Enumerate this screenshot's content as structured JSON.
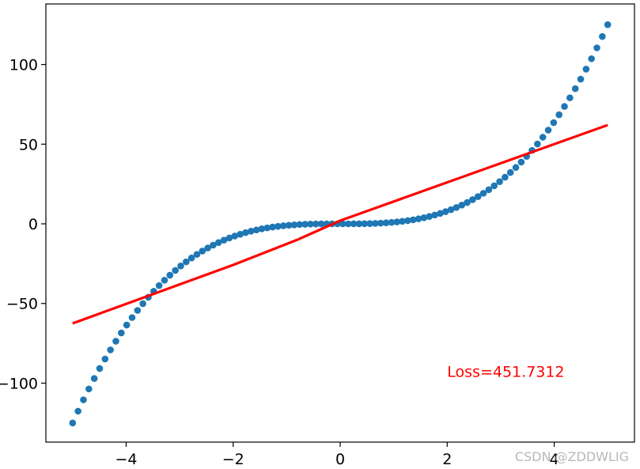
{
  "chart_data": {
    "type": "scatter",
    "xlim": [
      -5.5,
      5.5
    ],
    "ylim": [
      -137,
      138
    ],
    "x_ticks": [
      -4,
      -2,
      0,
      2,
      4
    ],
    "x_tick_labels": [
      "−4",
      "−2",
      "0",
      "2",
      "4"
    ],
    "y_ticks": [
      -100,
      -50,
      0,
      50,
      100
    ],
    "y_tick_labels": [
      "−100",
      "−50",
      "0",
      "50",
      "100"
    ],
    "grid": false,
    "series": [
      {
        "type": "scatter",
        "color": "#1f77b4",
        "x_range": [
          -5,
          5
        ],
        "n_points": 100,
        "function": "cube"
      },
      {
        "type": "line",
        "color": "#ff0000",
        "x": [
          -5,
          -2,
          -0.8,
          0,
          5
        ],
        "y": [
          -62.5,
          -25.8,
          -10,
          2,
          62
        ]
      }
    ],
    "annotations": [
      {
        "text": "Loss=451.7312",
        "x": 2,
        "y": -96,
        "color": "#ff0000"
      }
    ],
    "watermark": "CSDN @ZDDWLIG"
  }
}
